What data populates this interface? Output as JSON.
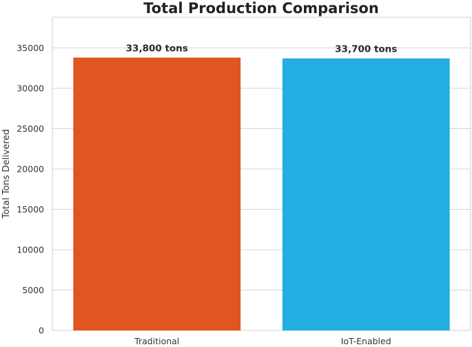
{
  "chart_data": {
    "type": "bar",
    "title": "Total Production Comparison",
    "xlabel": "",
    "ylabel": "Total Tons Delivered",
    "categories": [
      "Traditional",
      "IoT-Enabled"
    ],
    "values": [
      33800,
      33700
    ],
    "data_labels": [
      "33,800 tons",
      "33,700 tons"
    ],
    "colors": [
      "#e05520",
      "#22aee0"
    ],
    "ylim": [
      0,
      38800
    ],
    "yticks": [
      0,
      5000,
      10000,
      15000,
      20000,
      25000,
      30000,
      35000
    ],
    "grid": true,
    "legend": "none"
  }
}
